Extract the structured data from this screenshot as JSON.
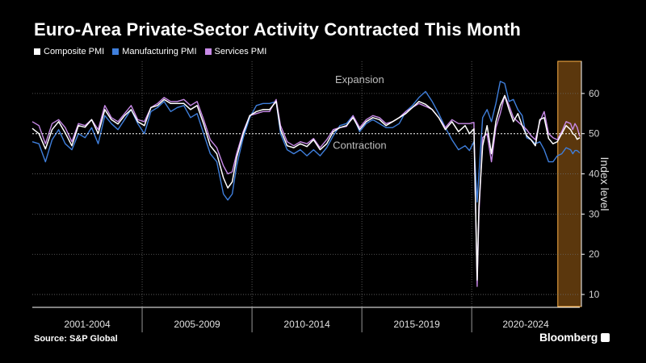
{
  "title": "Euro-Area Private-Sector Activity Contracted This Month",
  "source": "Source: S&P Global",
  "brand": "Bloomberg",
  "colors": {
    "composite": "#ffffff",
    "manufacturing": "#3f7fdc",
    "services": "#c88ae8",
    "highlight": "#ffb347"
  },
  "chart_data": {
    "type": "line",
    "ylabel": "Index level",
    "ylim": [
      7,
      68
    ],
    "yticks": [
      10,
      20,
      30,
      40,
      50,
      60
    ],
    "x_range": [
      2000,
      2024.92
    ],
    "period_labels": [
      "2001-2004",
      "2005-2009",
      "2010-2014",
      "2015-2019",
      "2020-2024"
    ],
    "period_separators": [
      2005,
      2010,
      2015,
      2020
    ],
    "highlight_range": [
      2023.92,
      2024.92
    ],
    "reference_line": 50,
    "annotations": [
      {
        "text": "Expansion",
        "x": 2014.9,
        "y": 62.6
      },
      {
        "text": "Contraction",
        "x": 2014.9,
        "y": 46.2
      }
    ],
    "series": [
      {
        "name": "Composite PMI",
        "key": "composite",
        "x": [
          2000.0,
          2000.3,
          2000.6,
          2000.9,
          2001.2,
          2001.5,
          2001.8,
          2002.1,
          2002.4,
          2002.7,
          2003.0,
          2003.3,
          2003.6,
          2003.9,
          2004.2,
          2004.5,
          2004.8,
          2005.1,
          2005.4,
          2005.7,
          2006.0,
          2006.3,
          2006.6,
          2006.9,
          2007.2,
          2007.5,
          2007.8,
          2008.1,
          2008.4,
          2008.7,
          2008.9,
          2009.1,
          2009.3,
          2009.6,
          2009.9,
          2010.2,
          2010.5,
          2010.8,
          2011.1,
          2011.3,
          2011.6,
          2011.9,
          2012.2,
          2012.5,
          2012.8,
          2013.1,
          2013.4,
          2013.7,
          2014.0,
          2014.3,
          2014.6,
          2014.9,
          2015.2,
          2015.5,
          2015.8,
          2016.1,
          2016.4,
          2016.7,
          2017.0,
          2017.3,
          2017.6,
          2017.9,
          2018.2,
          2018.5,
          2018.8,
          2019.1,
          2019.4,
          2019.7,
          2019.9,
          2020.1,
          2020.25,
          2020.33,
          2020.5,
          2020.7,
          2020.9,
          2021.1,
          2021.3,
          2021.5,
          2021.7,
          2021.9,
          2022.1,
          2022.3,
          2022.5,
          2022.7,
          2022.9,
          2023.1,
          2023.3,
          2023.5,
          2023.7,
          2023.9,
          2024.1,
          2024.3,
          2024.5,
          2024.6,
          2024.7,
          2024.8,
          2024.92
        ],
        "y": [
          51.3,
          50.0,
          46.2,
          51.0,
          53.0,
          50.2,
          47.0,
          52.0,
          51.6,
          53.5,
          50.0,
          56.0,
          53.5,
          52.4,
          54.5,
          56.0,
          53.0,
          52.0,
          56.5,
          57.0,
          58.5,
          57.5,
          57.5,
          57.5,
          56.0,
          57.0,
          52.4,
          47.0,
          45.0,
          39.0,
          36.5,
          38.0,
          44.0,
          50.0,
          54.5,
          55.5,
          56.0,
          56.0,
          58.0,
          51.0,
          47.0,
          46.5,
          47.5,
          46.8,
          48.5,
          46.0,
          47.5,
          50.5,
          51.5,
          52.0,
          54.0,
          51.0,
          53.0,
          54.0,
          53.5,
          52.0,
          53.0,
          54.0,
          55.0,
          56.5,
          58.0,
          57.3,
          56.0,
          54.0,
          51.0,
          53.0,
          50.5,
          52.0,
          50.0,
          51.2,
          13.6,
          32.0,
          47.0,
          52.0,
          45.0,
          53.0,
          57.0,
          59.5,
          56.0,
          53.0,
          55.0,
          52.0,
          49.5,
          48.5,
          47.0,
          53.5,
          54.0,
          48.8,
          47.5,
          48.0,
          50.0,
          52.0,
          51.0,
          50.0,
          49.6,
          48.6,
          49.0
        ]
      },
      {
        "name": "Manufacturing PMI",
        "key": "manufacturing",
        "x": [
          2000.0,
          2000.3,
          2000.6,
          2000.9,
          2001.2,
          2001.5,
          2001.8,
          2002.1,
          2002.4,
          2002.7,
          2003.0,
          2003.3,
          2003.6,
          2003.9,
          2004.2,
          2004.5,
          2004.8,
          2005.1,
          2005.4,
          2005.7,
          2006.0,
          2006.3,
          2006.6,
          2006.9,
          2007.2,
          2007.5,
          2007.8,
          2008.1,
          2008.4,
          2008.7,
          2008.9,
          2009.1,
          2009.3,
          2009.6,
          2009.9,
          2010.2,
          2010.5,
          2010.8,
          2011.1,
          2011.3,
          2011.6,
          2011.9,
          2012.2,
          2012.5,
          2012.8,
          2013.1,
          2013.4,
          2013.7,
          2014.0,
          2014.3,
          2014.6,
          2014.9,
          2015.2,
          2015.5,
          2015.8,
          2016.1,
          2016.4,
          2016.7,
          2017.0,
          2017.3,
          2017.6,
          2017.9,
          2018.2,
          2018.5,
          2018.8,
          2019.1,
          2019.4,
          2019.7,
          2019.9,
          2020.1,
          2020.25,
          2020.33,
          2020.5,
          2020.7,
          2020.9,
          2021.1,
          2021.3,
          2021.5,
          2021.7,
          2021.9,
          2022.1,
          2022.3,
          2022.5,
          2022.7,
          2022.9,
          2023.1,
          2023.3,
          2023.5,
          2023.7,
          2023.9,
          2024.1,
          2024.3,
          2024.5,
          2024.6,
          2024.7,
          2024.8,
          2024.92
        ],
        "y": [
          48.0,
          47.5,
          43.0,
          48.5,
          51.0,
          47.5,
          46.0,
          50.0,
          49.0,
          51.5,
          47.5,
          54.5,
          52.5,
          51.0,
          53.5,
          56.0,
          52.5,
          50.0,
          55.5,
          56.5,
          58.0,
          55.5,
          56.5,
          57.0,
          54.0,
          55.0,
          50.0,
          45.0,
          43.0,
          35.0,
          33.5,
          35.0,
          42.0,
          49.0,
          54.0,
          57.0,
          57.5,
          57.5,
          58.0,
          50.0,
          46.0,
          45.0,
          46.0,
          44.5,
          46.0,
          44.5,
          46.5,
          49.5,
          52.0,
          52.5,
          54.5,
          50.5,
          52.5,
          53.5,
          52.5,
          51.5,
          51.5,
          52.5,
          55.5,
          57.0,
          59.0,
          60.5,
          58.0,
          55.0,
          51.5,
          48.5,
          46.0,
          47.0,
          45.8,
          48.0,
          33.0,
          40.0,
          54.0,
          56.0,
          53.0,
          57.5,
          63.0,
          62.5,
          58.0,
          58.5,
          56.0,
          54.5,
          49.0,
          48.5,
          47.5,
          48.0,
          46.0,
          43.0,
          43.0,
          44.5,
          45.0,
          46.5,
          46.0,
          45.0,
          45.8,
          45.8,
          45.2
        ]
      },
      {
        "name": "Services PMI",
        "key": "services",
        "x": [
          2000.0,
          2000.3,
          2000.6,
          2000.9,
          2001.2,
          2001.5,
          2001.8,
          2002.1,
          2002.4,
          2002.7,
          2003.0,
          2003.3,
          2003.6,
          2003.9,
          2004.2,
          2004.5,
          2004.8,
          2005.1,
          2005.4,
          2005.7,
          2006.0,
          2006.3,
          2006.6,
          2006.9,
          2007.2,
          2007.5,
          2007.8,
          2008.1,
          2008.4,
          2008.7,
          2008.9,
          2009.1,
          2009.3,
          2009.6,
          2009.9,
          2010.2,
          2010.5,
          2010.8,
          2011.1,
          2011.3,
          2011.6,
          2011.9,
          2012.2,
          2012.5,
          2012.8,
          2013.1,
          2013.4,
          2013.7,
          2014.0,
          2014.3,
          2014.6,
          2014.9,
          2015.2,
          2015.5,
          2015.8,
          2016.1,
          2016.4,
          2016.7,
          2017.0,
          2017.3,
          2017.6,
          2017.9,
          2018.2,
          2018.5,
          2018.8,
          2019.1,
          2019.4,
          2019.7,
          2019.9,
          2020.1,
          2020.25,
          2020.33,
          2020.5,
          2020.7,
          2020.9,
          2021.1,
          2021.3,
          2021.5,
          2021.7,
          2021.9,
          2022.1,
          2022.3,
          2022.5,
          2022.7,
          2022.9,
          2023.1,
          2023.3,
          2023.5,
          2023.7,
          2023.9,
          2024.1,
          2024.3,
          2024.5,
          2024.6,
          2024.7,
          2024.8,
          2024.92
        ],
        "y": [
          53.0,
          52.0,
          47.5,
          52.5,
          53.5,
          51.5,
          48.0,
          52.5,
          52.0,
          53.5,
          51.0,
          57.0,
          54.0,
          53.0,
          55.0,
          57.0,
          53.5,
          53.0,
          56.5,
          57.5,
          59.0,
          58.0,
          58.0,
          58.5,
          57.0,
          58.0,
          53.5,
          48.5,
          46.5,
          42.0,
          40.0,
          40.5,
          45.0,
          50.5,
          54.5,
          55.0,
          55.5,
          55.5,
          58.5,
          52.0,
          48.0,
          47.0,
          48.0,
          47.5,
          48.8,
          46.5,
          48.5,
          51.0,
          51.5,
          51.8,
          54.5,
          51.5,
          53.5,
          54.5,
          54.0,
          52.5,
          53.0,
          54.0,
          55.5,
          56.5,
          57.5,
          56.8,
          56.0,
          54.0,
          51.5,
          53.5,
          52.5,
          52.5,
          52.5,
          52.8,
          12.0,
          30.0,
          49.0,
          50.0,
          43.0,
          51.5,
          55.0,
          59.5,
          57.0,
          54.0,
          53.0,
          52.0,
          51.0,
          49.5,
          48.5,
          53.0,
          55.5,
          50.0,
          49.0,
          48.5,
          50.5,
          53.0,
          52.5,
          51.0,
          52.5,
          51.6,
          49.3
        ]
      }
    ]
  }
}
